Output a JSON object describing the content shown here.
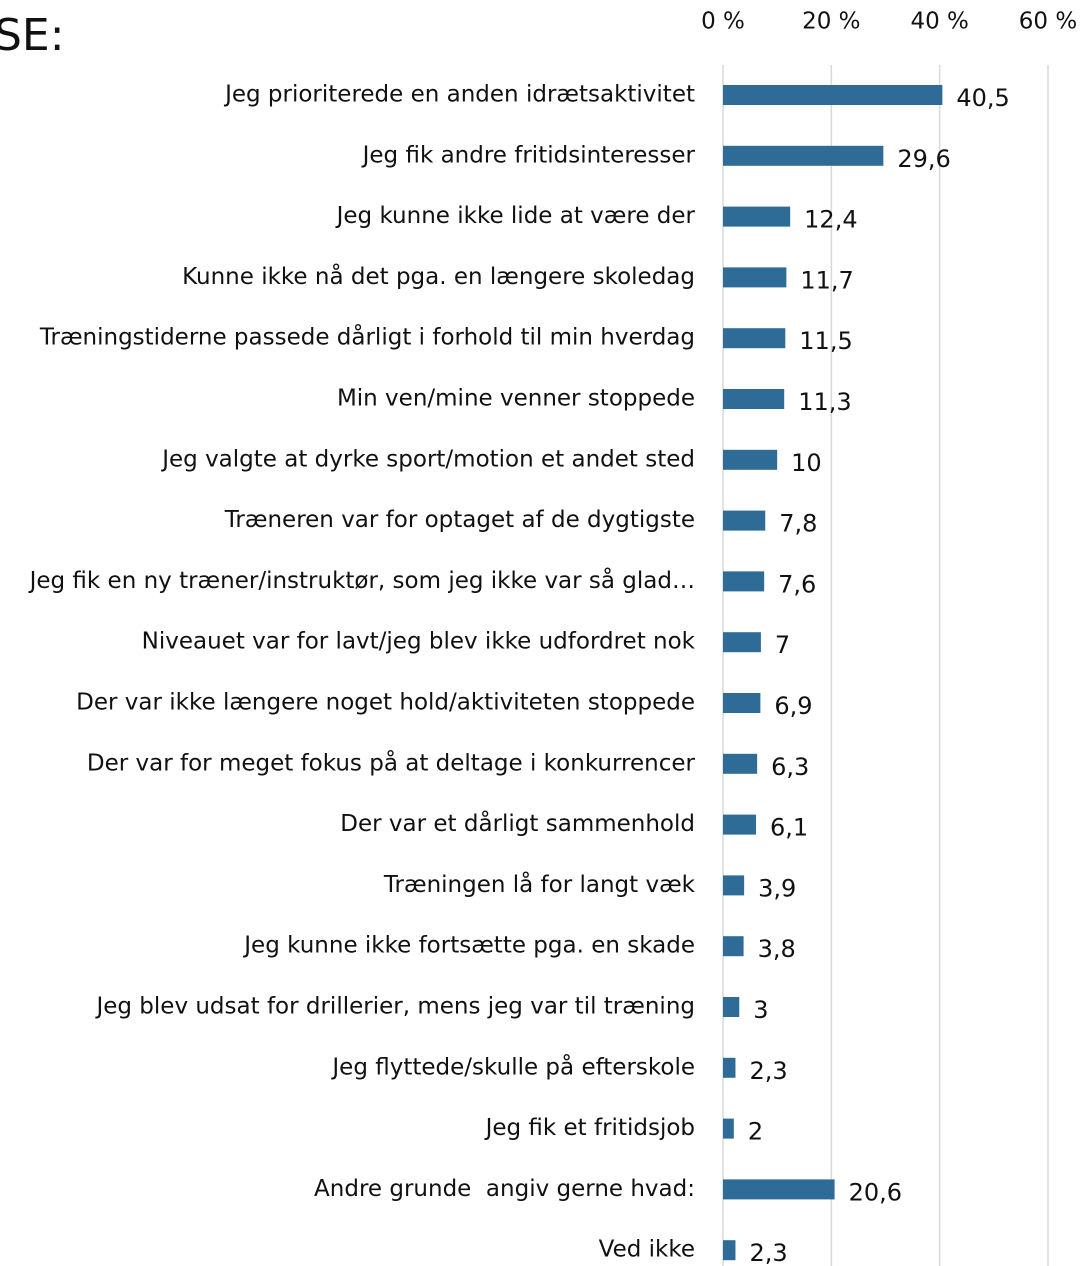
{
  "chart_data": {
    "type": "barh",
    "title": "SE:",
    "categories": [
      "Jeg prioriterede en anden idrætsaktivitet",
      "Jeg fik andre fritidsinteresser",
      "Jeg kunne ikke lide at være der",
      "Kunne ikke nå det pga. en længere skoledag",
      "Træningstiderne passede dårligt i forhold til min hverdag",
      "Min ven/mine venner stoppede",
      "Jeg valgte at dyrke sport/motion et andet sted",
      "Træneren var for optaget af de dygtigste",
      "Jeg fik en ny træner/instruktør, som jeg ikke var så glad…",
      "Niveauet var for lavt/jeg blev ikke udfordret nok",
      "Der var ikke længere noget hold/aktiviteten stoppede",
      "Der var for meget fokus på at deltage i konkurrencer",
      "Der var et dårligt sammenhold",
      "Træningen lå for langt væk",
      "Jeg kunne ikke fortsætte pga. en skade",
      "Jeg blev udsat for drillerier, mens jeg var til træning",
      "Jeg flyttede/skulle på efterskole",
      "Jeg fik et fritidsjob",
      "Andre grunde  angiv gerne hvad:",
      "Ved ikke"
    ],
    "values": [
      40.5,
      29.6,
      12.4,
      11.7,
      11.5,
      11.3,
      10,
      7.8,
      7.6,
      7,
      6.9,
      6.3,
      6.1,
      3.9,
      3.8,
      3,
      2.3,
      2,
      20.6,
      2.3
    ],
    "value_labels": [
      "40,5",
      "29,6",
      "12,4",
      "11,7",
      "11,5",
      "11,3",
      "10",
      "7,8",
      "7,6",
      "7",
      "6,9",
      "6,3",
      "6,1",
      "3,9",
      "3,8",
      "3",
      "2,3",
      "2",
      "20,6",
      "2,3"
    ],
    "color": "#2e6b96",
    "xlim": [
      0,
      60
    ],
    "xticks": [
      {
        "value": 0,
        "label": "0 %"
      },
      {
        "value": 20,
        "label": "20 %"
      },
      {
        "value": 40,
        "label": "40 %"
      },
      {
        "value": 60,
        "label": "60 %"
      }
    ],
    "grid": true
  }
}
